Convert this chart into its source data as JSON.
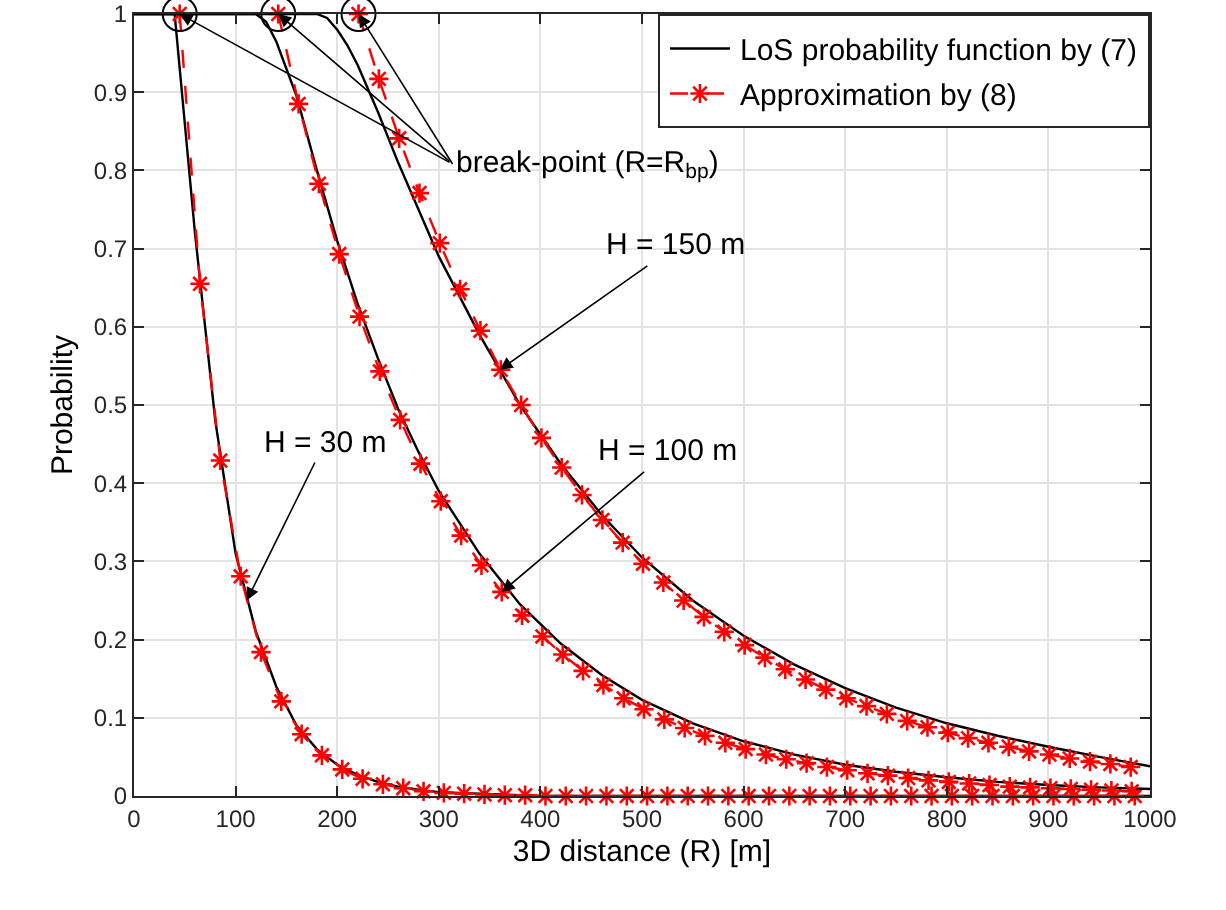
{
  "chart_data": {
    "type": "line",
    "xlabel": "3D distance (R) [m]",
    "ylabel": "Probability",
    "xlim": [
      0,
      1000
    ],
    "ylim": [
      0,
      1
    ],
    "xticks": [
      0,
      100,
      200,
      300,
      400,
      500,
      600,
      700,
      800,
      900,
      1000
    ],
    "yticks": [
      0,
      0.1,
      0.2,
      0.3,
      0.4,
      0.5,
      0.6,
      0.7,
      0.8,
      0.9,
      1
    ],
    "grid": true,
    "legend": "top right",
    "series": [
      {
        "name": "LoS probability function by (7)",
        "color": "#000000",
        "line_style": "solid",
        "marker": "none",
        "x": [
          0,
          20,
          40,
          60,
          80,
          100,
          120,
          140,
          160,
          180,
          200,
          220,
          240,
          260,
          280,
          300,
          320,
          340,
          360,
          380,
          400,
          1000
        ],
        "values": [
          1,
          1,
          1,
          0.72,
          0.48,
          0.31,
          0.21,
          0.14,
          0.09,
          0.06,
          0.04,
          0.027,
          0.018,
          0.012,
          0.008,
          0.005,
          0.004,
          0.003,
          0.002,
          0.001,
          0,
          0
        ]
      },
      {
        "name": "Approximation by (8)",
        "color": "#ff0000",
        "line_style": "dashed",
        "marker": "cross",
        "x": [
          45,
          65,
          85,
          105,
          125,
          145,
          165,
          185,
          205,
          225,
          245,
          265,
          285,
          305,
          325,
          345,
          365,
          385,
          405,
          425,
          445,
          465,
          485,
          505,
          525,
          545,
          565,
          585,
          605,
          625,
          645,
          665,
          685,
          705,
          725,
          745,
          765,
          785,
          805,
          825,
          845,
          865,
          885,
          905,
          925,
          945,
          965,
          985
        ],
        "values": [
          1,
          0.655,
          0.429,
          0.281,
          0.184,
          0.121,
          0.079,
          0.052,
          0.034,
          0.022,
          0.015,
          0.01,
          0.006,
          0.004,
          0.003,
          0.002,
          0.001,
          0.001,
          0,
          0,
          0,
          0,
          0,
          0,
          0,
          0,
          0,
          0,
          0,
          0,
          0,
          0,
          0,
          0,
          0,
          0,
          0,
          0,
          0,
          0,
          0,
          0,
          0,
          0,
          0,
          0,
          0,
          0
        ]
      },
      {
        "color": "#000000",
        "line_style": "solid",
        "marker": "none",
        "x": [
          0,
          120,
          130,
          140,
          150,
          160,
          180,
          200,
          220,
          240,
          260,
          280,
          300,
          340,
          380,
          420,
          460,
          500,
          550,
          600,
          650,
          700,
          750,
          800,
          850,
          900,
          950,
          1000
        ],
        "values": [
          1,
          1,
          0.99,
          0.965,
          0.93,
          0.895,
          0.8,
          0.71,
          0.63,
          0.56,
          0.495,
          0.44,
          0.39,
          0.31,
          0.245,
          0.195,
          0.155,
          0.123,
          0.093,
          0.07,
          0.053,
          0.04,
          0.031,
          0.024,
          0.018,
          0.014,
          0.011,
          0.009
        ]
      },
      {
        "color": "#ff0000",
        "line_style": "dashed",
        "marker": "cross",
        "x": [
          142,
          162,
          182,
          202,
          222,
          242,
          262,
          282,
          302,
          322,
          342,
          362,
          382,
          402,
          422,
          442,
          462,
          482,
          502,
          522,
          542,
          562,
          582,
          602,
          622,
          642,
          662,
          682,
          702,
          722,
          742,
          762,
          782,
          802,
          822,
          842,
          862,
          882,
          902,
          922,
          942,
          962,
          982
        ],
        "values": [
          1,
          0.885,
          0.783,
          0.693,
          0.613,
          0.543,
          0.481,
          0.425,
          0.377,
          0.333,
          0.295,
          0.261,
          0.231,
          0.204,
          0.181,
          0.16,
          0.142,
          0.125,
          0.111,
          0.098,
          0.087,
          0.077,
          0.068,
          0.06,
          0.053,
          0.047,
          0.042,
          0.037,
          0.033,
          0.029,
          0.026,
          0.023,
          0.02,
          0.018,
          0.016,
          0.014,
          0.012,
          0.011,
          0.01,
          0.009,
          0.008,
          0.007,
          0.006
        ]
      },
      {
        "color": "#000000",
        "line_style": "solid",
        "marker": "none",
        "x": [
          0,
          180,
          190,
          200,
          210,
          220,
          230,
          240,
          260,
          280,
          300,
          340,
          380,
          420,
          460,
          500,
          550,
          600,
          650,
          700,
          750,
          800,
          850,
          900,
          950,
          1000
        ],
        "values": [
          1,
          1,
          0.995,
          0.98,
          0.96,
          0.935,
          0.905,
          0.875,
          0.81,
          0.75,
          0.69,
          0.59,
          0.5,
          0.425,
          0.36,
          0.305,
          0.25,
          0.205,
          0.168,
          0.138,
          0.113,
          0.093,
          0.077,
          0.063,
          0.05,
          0.038
        ]
      },
      {
        "color": "#ff0000",
        "line_style": "dashed",
        "marker": "cross",
        "x": [
          221,
          241,
          261,
          281,
          301,
          321,
          341,
          361,
          381,
          401,
          421,
          441,
          461,
          481,
          501,
          521,
          541,
          561,
          581,
          601,
          621,
          641,
          661,
          681,
          701,
          721,
          741,
          761,
          781,
          801,
          821,
          841,
          861,
          881,
          901,
          921,
          941,
          961,
          981
        ],
        "values": [
          1,
          0.917,
          0.841,
          0.771,
          0.707,
          0.648,
          0.595,
          0.545,
          0.5,
          0.458,
          0.42,
          0.385,
          0.353,
          0.324,
          0.297,
          0.273,
          0.25,
          0.229,
          0.21,
          0.193,
          0.177,
          0.162,
          0.149,
          0.136,
          0.125,
          0.115,
          0.105,
          0.096,
          0.088,
          0.081,
          0.074,
          0.068,
          0.063,
          0.057,
          0.053,
          0.048,
          0.044,
          0.041,
          0.037
        ]
      },
      {
        "type": "scatter",
        "color": "#000000",
        "marker": "circle",
        "x": [
          45,
          142,
          221
        ],
        "values": [
          1,
          1,
          1
        ]
      }
    ],
    "annotations": [
      {
        "text": "H = 30 m",
        "x": 111,
        "y": 0.25
      },
      {
        "text": "H = 100 m",
        "x": 362,
        "y": 0.261
      },
      {
        "text": "H = 150 m",
        "x": 360,
        "y": 0.545
      },
      {
        "text": "break-point (R=R$_{bp}$)",
        "x": 221,
        "y": 1
      }
    ]
  }
}
